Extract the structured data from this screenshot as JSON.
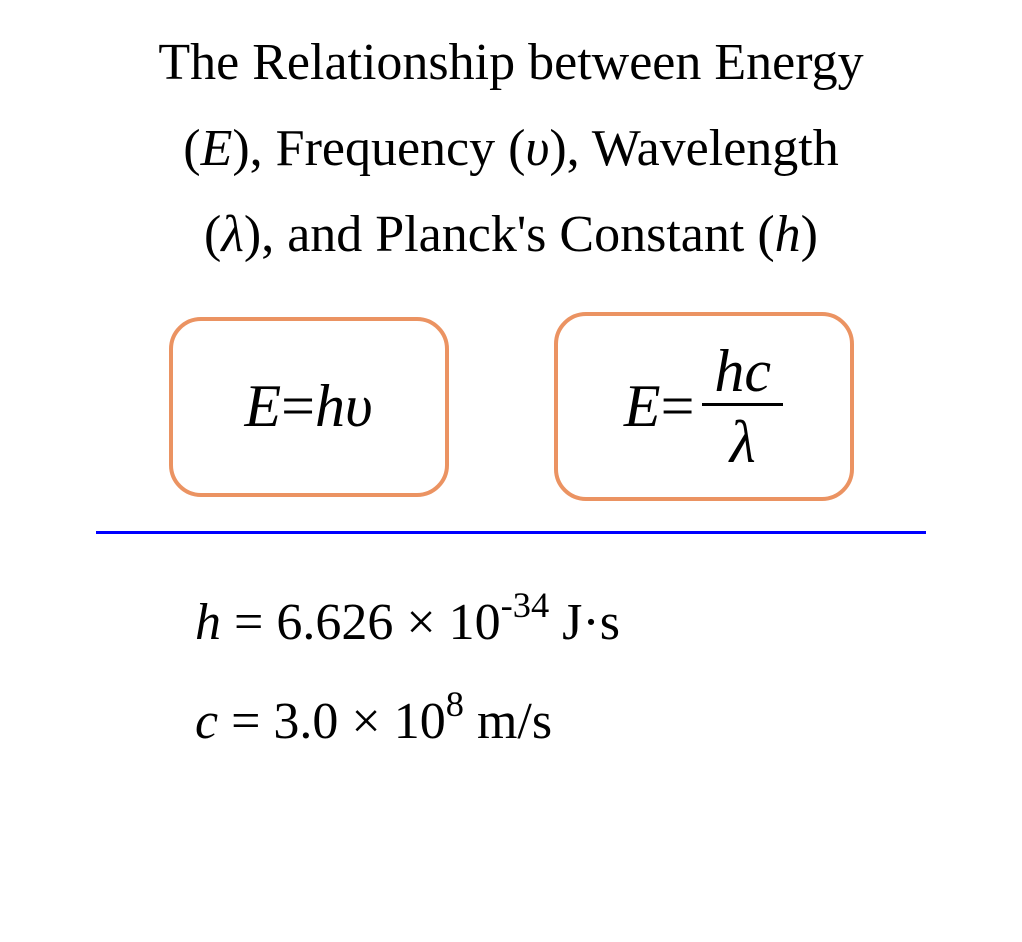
{
  "title": {
    "line1_pre": "The Relationship between Energy",
    "line2_pre": "(",
    "line2_E": "E",
    "line2_mid1": "), Frequency (",
    "line2_nu": "υ",
    "line2_mid2": "), Wavelength",
    "line3_pre": "(",
    "line3_lambda": "λ",
    "line3_mid": "), and Planck's Constant (",
    "line3_h": "h",
    "line3_post": ")"
  },
  "equation1": {
    "E": "E",
    "eq": "=",
    "h": "h",
    "nu": "υ"
  },
  "equation2": {
    "E": "E",
    "eq": " = ",
    "hc": "hc",
    "lambda": "λ"
  },
  "constants": {
    "h_var": "h",
    "h_eq": " = 6.626 × 10",
    "h_exp": "-34",
    "h_unit": " J·s",
    "c_var": "c",
    "c_eq": " = 3.0 × 10",
    "c_exp": "8",
    "c_unit": " m/s"
  },
  "colors": {
    "box_border": "#eb9362",
    "divider": "#0000ff",
    "text": "#000000",
    "background": "#ffffff"
  }
}
